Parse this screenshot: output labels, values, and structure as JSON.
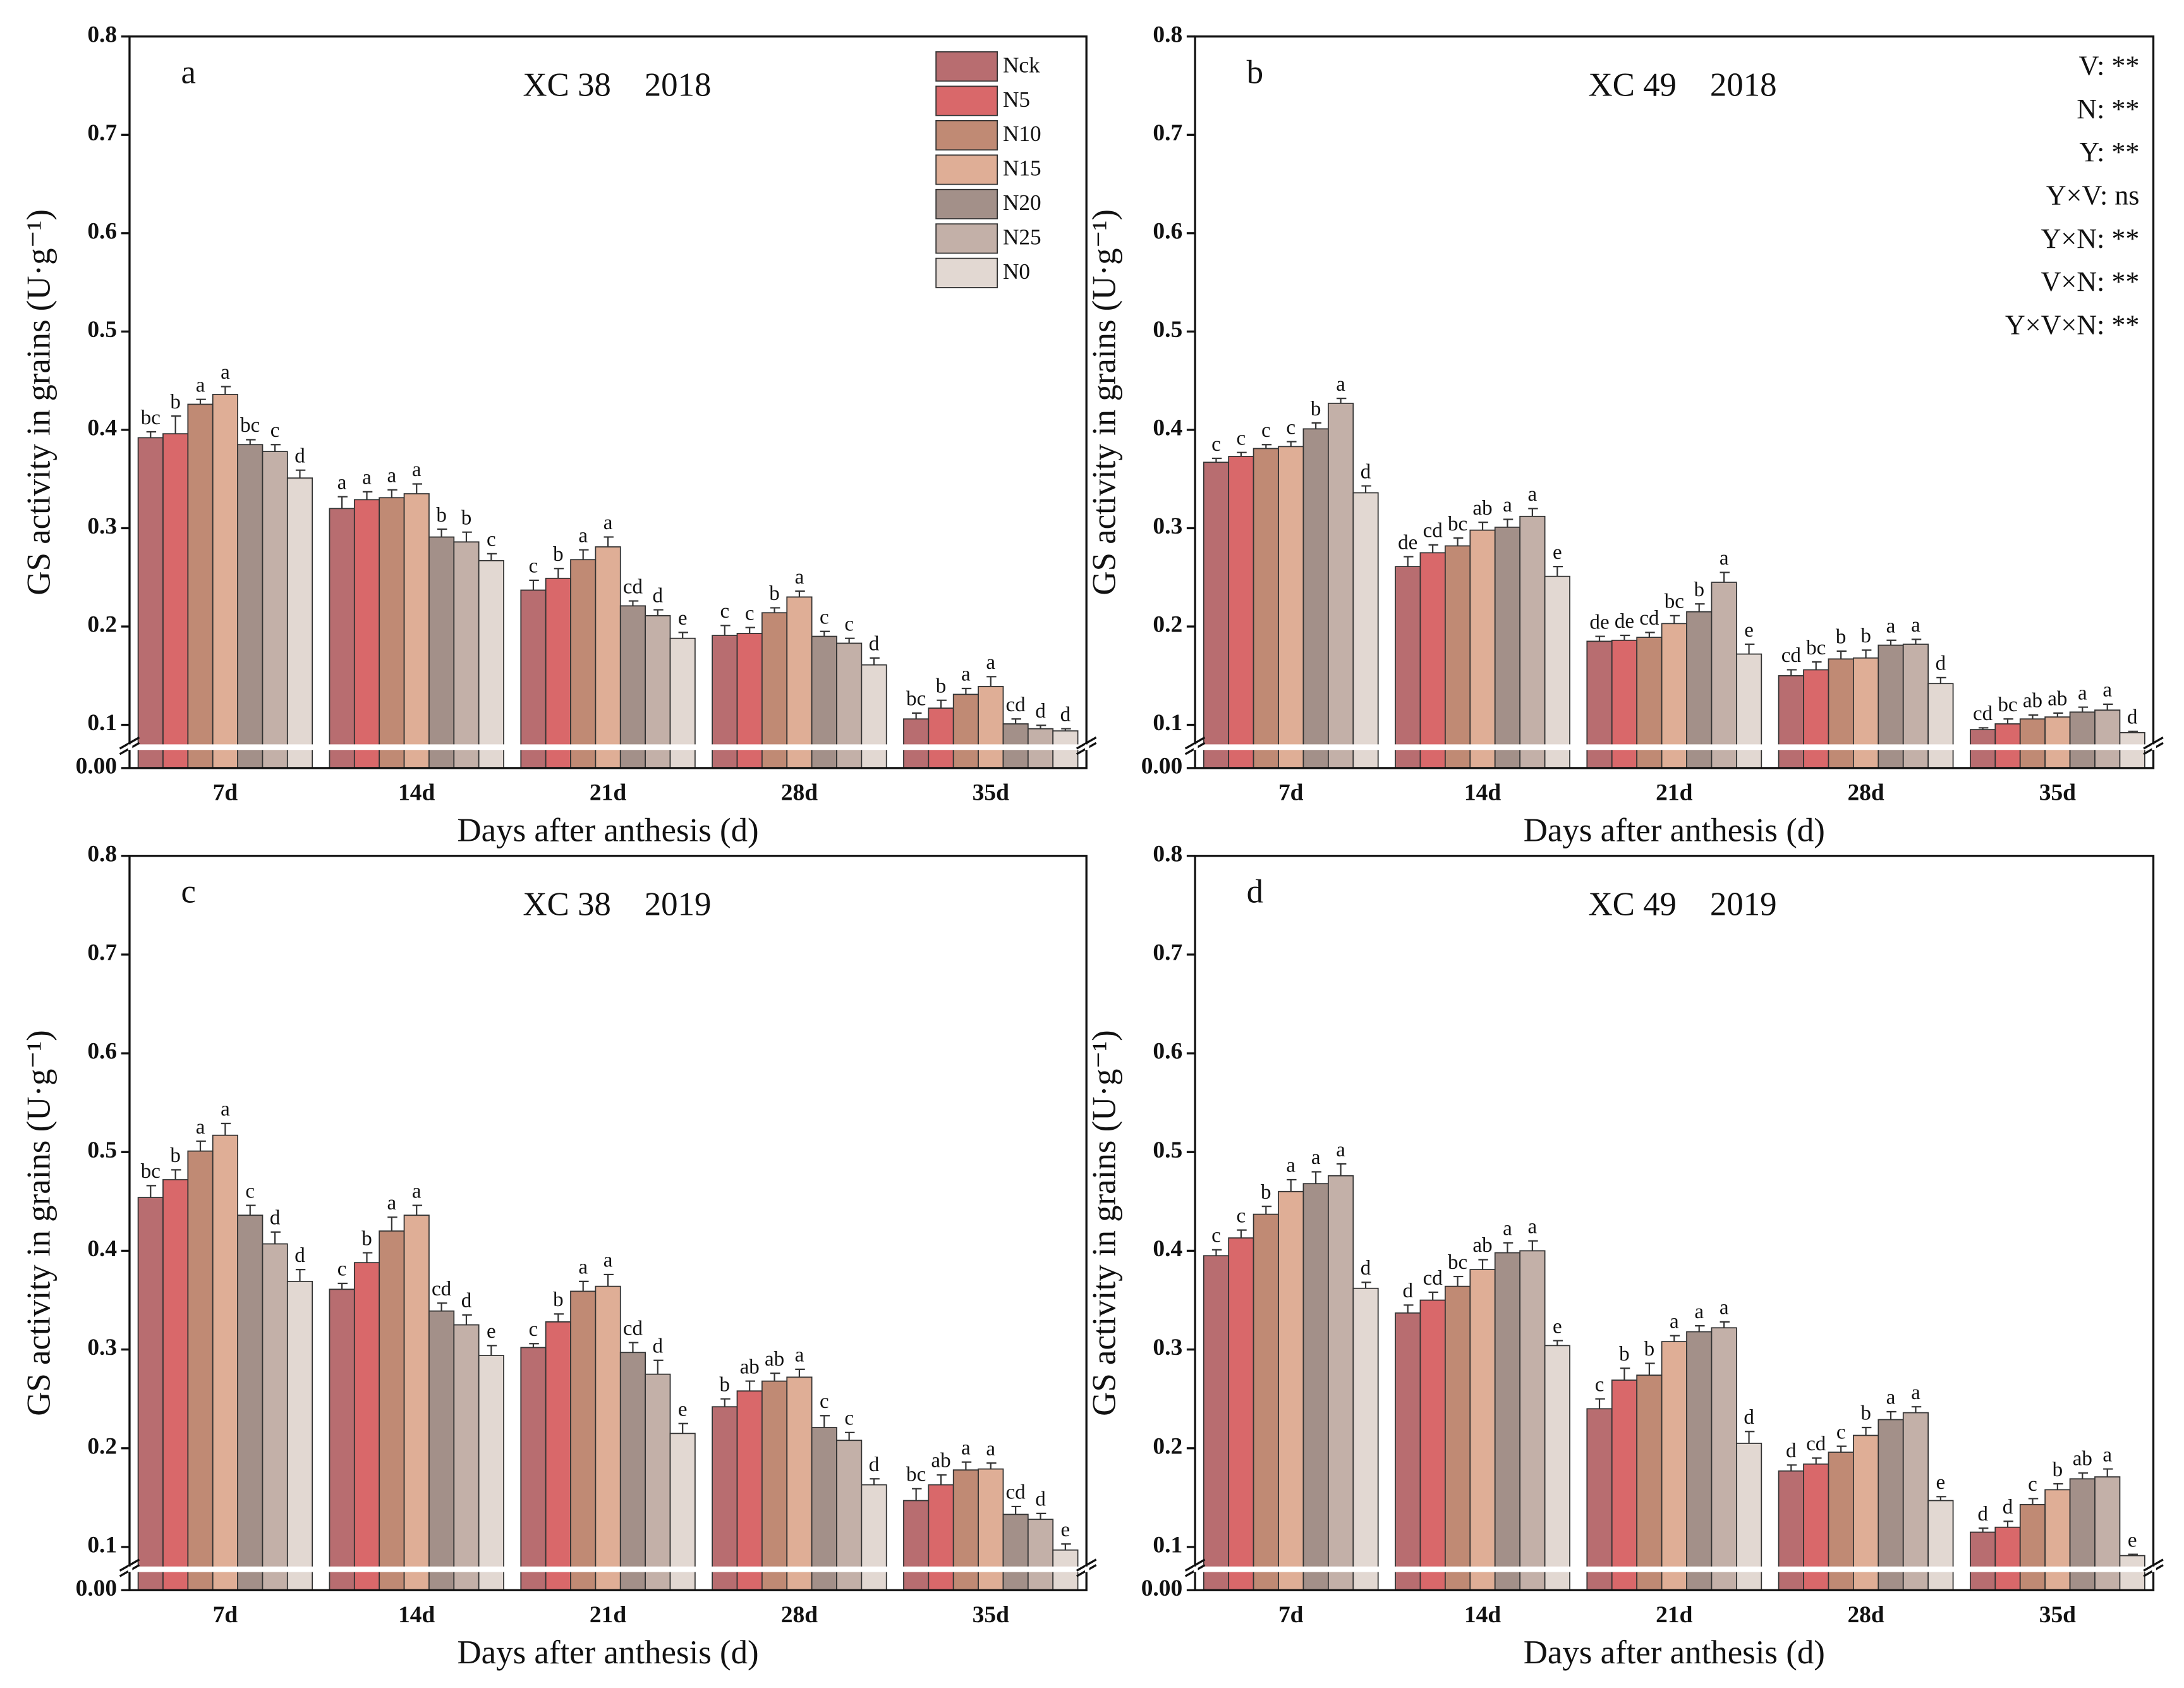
{
  "chart_data": [
    {
      "type": "bar",
      "label": "a",
      "title": "XC 38    2018",
      "xlabel": "Days after anthesis (d)",
      "ylabel": "GS activity in grains (U·g⁻¹)",
      "categories": [
        "7d",
        "14d",
        "21d",
        "28d",
        "35d"
      ],
      "ylim": [
        0,
        0.8
      ],
      "yticks": [
        {
          "value": 0,
          "label": "0.00"
        },
        0.1,
        0.2,
        0.3,
        0.4,
        0.5,
        0.6,
        0.7,
        0.8
      ],
      "legend": "upper right",
      "series": [
        {
          "name": "Nck",
          "color": "#b86d70",
          "values": [
            0.392,
            0.32,
            0.237,
            0.191,
            0.106
          ],
          "errors": [
            0.006,
            0.012,
            0.01,
            0.01,
            0.006
          ],
          "letters": [
            "bc",
            "a",
            "c",
            "c",
            "bc"
          ]
        },
        {
          "name": "N5",
          "color": "#d9686a",
          "values": [
            0.396,
            0.329,
            0.249,
            0.193,
            0.117
          ],
          "errors": [
            0.018,
            0.008,
            0.01,
            0.006,
            0.008
          ],
          "letters": [
            "b",
            "a",
            "b",
            "c",
            "b"
          ]
        },
        {
          "name": "N10",
          "color": "#c08a74",
          "values": [
            0.426,
            0.331,
            0.268,
            0.214,
            0.131
          ],
          "errors": [
            0.005,
            0.008,
            0.01,
            0.005,
            0.006
          ],
          "letters": [
            "a",
            "a",
            "a",
            "b",
            "a"
          ]
        },
        {
          "name": "N15",
          "color": "#dfae96",
          "values": [
            0.436,
            0.335,
            0.281,
            0.23,
            0.139
          ],
          "errors": [
            0.008,
            0.01,
            0.01,
            0.006,
            0.01
          ],
          "letters": [
            "a",
            "a",
            "a",
            "a",
            "a"
          ]
        },
        {
          "name": "N20",
          "color": "#a39089",
          "values": [
            0.385,
            0.291,
            0.221,
            0.19,
            0.101
          ],
          "errors": [
            0.005,
            0.008,
            0.005,
            0.005,
            0.005
          ],
          "letters": [
            "bc",
            "b",
            "cd",
            "c",
            "cd"
          ]
        },
        {
          "name": "N25",
          "color": "#c3b0a8",
          "values": [
            0.378,
            0.286,
            0.211,
            0.183,
            0.091
          ],
          "errors": [
            0.007,
            0.01,
            0.006,
            0.005,
            0.008
          ],
          "letters": [
            "c",
            "b",
            "d",
            "c",
            "d"
          ]
        },
        {
          "name": "N0",
          "color": "#e2d8d2",
          "values": [
            0.351,
            0.267,
            0.188,
            0.161,
            0.086
          ],
          "errors": [
            0.008,
            0.007,
            0.006,
            0.007,
            0.005
          ],
          "letters": [
            "d",
            "c",
            "e",
            "d",
            "d"
          ]
        }
      ]
    },
    {
      "type": "bar",
      "label": "b",
      "title": "XC 49    2018",
      "xlabel": "Days after anthesis (d)",
      "ylabel": "GS activity in grains (U·g⁻¹)",
      "categories": [
        "7d",
        "14d",
        "21d",
        "28d",
        "35d"
      ],
      "ylim": [
        0,
        0.8
      ],
      "yticks": [
        {
          "value": 0,
          "label": "0.00"
        },
        0.1,
        0.2,
        0.3,
        0.4,
        0.5,
        0.6,
        0.7,
        0.8
      ],
      "annotations": [
        "V: **",
        "N: **",
        "Y: **",
        "Y×V: ns",
        "Y×N: **",
        "V×N: **",
        "Y×V×N: **"
      ],
      "series": [
        {
          "name": "Nck",
          "color": "#b86d70",
          "values": [
            0.367,
            0.261,
            0.185,
            0.15,
            0.089
          ],
          "errors": [
            0.004,
            0.01,
            0.005,
            0.006,
            0.004
          ],
          "letters": [
            "c",
            "de",
            "de",
            "cd",
            "cd"
          ]
        },
        {
          "name": "N5",
          "color": "#d9686a",
          "values": [
            0.373,
            0.275,
            0.186,
            0.156,
            0.101
          ],
          "errors": [
            0.004,
            0.008,
            0.005,
            0.008,
            0.005
          ],
          "letters": [
            "c",
            "cd",
            "de",
            "bc",
            "bc"
          ]
        },
        {
          "name": "N10",
          "color": "#c08a74",
          "values": [
            0.381,
            0.282,
            0.189,
            0.167,
            0.106
          ],
          "errors": [
            0.004,
            0.008,
            0.005,
            0.008,
            0.004
          ],
          "letters": [
            "c",
            "bc",
            "cd",
            "b",
            "ab"
          ]
        },
        {
          "name": "N15",
          "color": "#dfae96",
          "values": [
            0.383,
            0.298,
            0.203,
            0.168,
            0.108
          ],
          "errors": [
            0.005,
            0.008,
            0.008,
            0.008,
            0.004
          ],
          "letters": [
            "c",
            "ab",
            "bc",
            "b",
            "ab"
          ]
        },
        {
          "name": "N20",
          "color": "#a39089",
          "values": [
            0.401,
            0.301,
            0.215,
            0.181,
            0.113
          ],
          "errors": [
            0.006,
            0.008,
            0.008,
            0.005,
            0.005
          ],
          "letters": [
            "b",
            "a",
            "b",
            "a",
            "a"
          ]
        },
        {
          "name": "N25",
          "color": "#c3b0a8",
          "values": [
            0.427,
            0.312,
            0.245,
            0.182,
            0.115
          ],
          "errors": [
            0.005,
            0.008,
            0.01,
            0.005,
            0.006
          ],
          "letters": [
            "a",
            "a",
            "a",
            "a",
            "a"
          ]
        },
        {
          "name": "N0",
          "color": "#e2d8d2",
          "values": [
            0.336,
            0.251,
            0.172,
            0.142,
            0.082
          ],
          "errors": [
            0.007,
            0.01,
            0.01,
            0.006,
            0.003
          ],
          "letters": [
            "d",
            "e",
            "e",
            "d",
            "d"
          ]
        }
      ]
    },
    {
      "type": "bar",
      "label": "c",
      "title": "XC 38    2019",
      "xlabel": "Days after anthesis (d)",
      "ylabel": "GS activity in grains (U·g⁻¹)",
      "categories": [
        "7d",
        "14d",
        "21d",
        "28d",
        "35d"
      ],
      "ylim": [
        0,
        0.8
      ],
      "yticks": [
        {
          "value": 0,
          "label": "0.00"
        },
        0.1,
        0.2,
        0.3,
        0.4,
        0.5,
        0.6,
        0.7,
        0.8
      ],
      "series": [
        {
          "name": "Nck",
          "color": "#b86d70",
          "values": [
            0.454,
            0.361,
            0.302,
            0.242,
            0.147
          ],
          "errors": [
            0.012,
            0.006,
            0.004,
            0.008,
            0.012
          ],
          "letters": [
            "bc",
            "c",
            "c",
            "b",
            "bc"
          ]
        },
        {
          "name": "N5",
          "color": "#d9686a",
          "values": [
            0.472,
            0.388,
            0.328,
            0.258,
            0.163
          ],
          "errors": [
            0.01,
            0.01,
            0.008,
            0.01,
            0.01
          ],
          "letters": [
            "b",
            "b",
            "b",
            "ab",
            "ab"
          ]
        },
        {
          "name": "N10",
          "color": "#c08a74",
          "values": [
            0.501,
            0.42,
            0.359,
            0.268,
            0.178
          ],
          "errors": [
            0.01,
            0.014,
            0.01,
            0.008,
            0.008
          ],
          "letters": [
            "a",
            "a",
            "a",
            "ab",
            "a"
          ]
        },
        {
          "name": "N15",
          "color": "#dfae96",
          "values": [
            0.517,
            0.436,
            0.364,
            0.272,
            0.179
          ],
          "errors": [
            0.012,
            0.01,
            0.012,
            0.008,
            0.006
          ],
          "letters": [
            "a",
            "a",
            "a",
            "a",
            "a"
          ]
        },
        {
          "name": "N20",
          "color": "#a39089",
          "values": [
            0.436,
            0.339,
            0.297,
            0.221,
            0.133
          ],
          "errors": [
            0.01,
            0.008,
            0.01,
            0.012,
            0.008
          ],
          "letters": [
            "c",
            "cd",
            "cd",
            "c",
            "cd"
          ]
        },
        {
          "name": "N25",
          "color": "#c3b0a8",
          "values": [
            0.407,
            0.325,
            0.275,
            0.208,
            0.128
          ],
          "errors": [
            0.012,
            0.01,
            0.014,
            0.008,
            0.006
          ],
          "letters": [
            "d",
            "d",
            "d",
            "c",
            "d"
          ]
        },
        {
          "name": "N0",
          "color": "#e2d8d2",
          "values": [
            0.369,
            0.294,
            0.215,
            0.163,
            0.093
          ],
          "errors": [
            0.012,
            0.01,
            0.01,
            0.006,
            0.01
          ],
          "letters": [
            "d",
            "e",
            "e",
            "d",
            "e"
          ]
        }
      ]
    },
    {
      "type": "bar",
      "label": "d",
      "title": "XC 49    2019",
      "xlabel": "Days after anthesis (d)",
      "ylabel": "GS activity in grains (U·g⁻¹)",
      "categories": [
        "7d",
        "14d",
        "21d",
        "28d",
        "35d"
      ],
      "ylim": [
        0,
        0.8
      ],
      "yticks": [
        {
          "value": 0,
          "label": "0.00"
        },
        0.1,
        0.2,
        0.3,
        0.4,
        0.5,
        0.6,
        0.7,
        0.8
      ],
      "series": [
        {
          "name": "Nck",
          "color": "#b86d70",
          "values": [
            0.395,
            0.337,
            0.24,
            0.177,
            0.115
          ],
          "errors": [
            0.006,
            0.008,
            0.01,
            0.006,
            0.004
          ],
          "letters": [
            "c",
            "d",
            "c",
            "d",
            "d"
          ]
        },
        {
          "name": "N5",
          "color": "#d9686a",
          "values": [
            0.413,
            0.35,
            0.269,
            0.184,
            0.12
          ],
          "errors": [
            0.008,
            0.008,
            0.012,
            0.006,
            0.006
          ],
          "letters": [
            "c",
            "cd",
            "b",
            "cd",
            "d"
          ]
        },
        {
          "name": "N10",
          "color": "#c08a74",
          "values": [
            0.437,
            0.364,
            0.274,
            0.196,
            0.143
          ],
          "errors": [
            0.008,
            0.01,
            0.012,
            0.006,
            0.006
          ],
          "letters": [
            "b",
            "bc",
            "b",
            "c",
            "c"
          ]
        },
        {
          "name": "N15",
          "color": "#dfae96",
          "values": [
            0.46,
            0.381,
            0.308,
            0.213,
            0.158
          ],
          "errors": [
            0.012,
            0.01,
            0.006,
            0.008,
            0.006
          ],
          "letters": [
            "a",
            "ab",
            "a",
            "b",
            "b"
          ]
        },
        {
          "name": "N20",
          "color": "#a39089",
          "values": [
            0.468,
            0.398,
            0.318,
            0.229,
            0.169
          ],
          "errors": [
            0.012,
            0.01,
            0.006,
            0.008,
            0.006
          ],
          "letters": [
            "a",
            "a",
            "a",
            "a",
            "ab"
          ]
        },
        {
          "name": "N25",
          "color": "#c3b0a8",
          "values": [
            0.476,
            0.4,
            0.322,
            0.236,
            0.171
          ],
          "errors": [
            0.012,
            0.01,
            0.006,
            0.006,
            0.008
          ],
          "letters": [
            "a",
            "a",
            "a",
            "a",
            "a"
          ]
        },
        {
          "name": "N0",
          "color": "#e2d8d2",
          "values": [
            0.362,
            0.304,
            0.205,
            0.147,
            0.08
          ],
          "errors": [
            0.006,
            0.005,
            0.012,
            0.004,
            0.003
          ],
          "letters": [
            "d",
            "e",
            "d",
            "e",
            "e"
          ]
        }
      ]
    }
  ]
}
